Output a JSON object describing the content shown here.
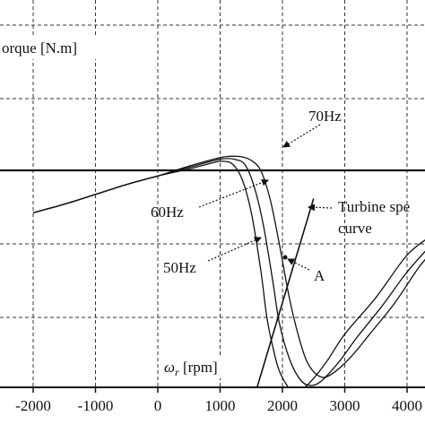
{
  "chart_data": {
    "type": "line",
    "title": "",
    "ylabel": "orque [N.m]",
    "xlabel_symbol": "ω",
    "xlabel_sub": "r",
    "xlabel_unit": " [rpm]",
    "xlim": [
      -2600,
      4500
    ],
    "x_ticks": [
      -2000,
      -1000,
      0,
      1000,
      2000,
      3000,
      4000
    ],
    "x_tick_labels": [
      "-2000",
      "-1000",
      "0",
      "1000",
      "2000",
      "3000",
      "4000"
    ],
    "grid": true,
    "series": [
      {
        "name": "50Hz",
        "points": [
          [
            -2000,
            -1.5
          ],
          [
            -1500,
            -1.2
          ],
          [
            -1000,
            -0.85
          ],
          [
            -500,
            -0.5
          ],
          [
            0,
            -0.2
          ],
          [
            500,
            0.05
          ],
          [
            900,
            0.28
          ],
          [
            1050,
            0.32
          ],
          [
            1200,
            0.22
          ],
          [
            1350,
            -0.3
          ],
          [
            1500,
            -1.5
          ],
          [
            1650,
            -3.5
          ],
          [
            1750,
            -5.2
          ],
          [
            1850,
            -6.3
          ],
          [
            1950,
            -7.1
          ],
          [
            2100,
            -7.7
          ],
          [
            2200,
            -7.85
          ],
          [
            2400,
            -7.6
          ],
          [
            2700,
            -6.8
          ],
          [
            3000,
            -5.8
          ],
          [
            3500,
            -4.5
          ],
          [
            4000,
            -3.0
          ],
          [
            4400,
            -2.3
          ]
        ]
      },
      {
        "name": "60Hz",
        "points": [
          [
            -2000,
            -1.5
          ],
          [
            -1500,
            -1.2
          ],
          [
            -1000,
            -0.85
          ],
          [
            -500,
            -0.5
          ],
          [
            0,
            -0.2
          ],
          [
            500,
            0.1
          ],
          [
            900,
            0.35
          ],
          [
            1100,
            0.42
          ],
          [
            1250,
            0.38
          ],
          [
            1400,
            0.2
          ],
          [
            1550,
            -0.6
          ],
          [
            1700,
            -2.0
          ],
          [
            1850,
            -4.0
          ],
          [
            1950,
            -5.4
          ],
          [
            2100,
            -6.6
          ],
          [
            2250,
            -7.3
          ],
          [
            2400,
            -7.6
          ],
          [
            2600,
            -7.5
          ],
          [
            2900,
            -6.8
          ],
          [
            3200,
            -5.9
          ],
          [
            3600,
            -4.8
          ],
          [
            4000,
            -3.6
          ],
          [
            4400,
            -2.6
          ]
        ]
      },
      {
        "name": "70Hz",
        "points": [
          [
            -2000,
            -1.5
          ],
          [
            -1500,
            -1.2
          ],
          [
            -1000,
            -0.85
          ],
          [
            -500,
            -0.5
          ],
          [
            0,
            -0.2
          ],
          [
            500,
            0.15
          ],
          [
            1000,
            0.45
          ],
          [
            1200,
            0.5
          ],
          [
            1350,
            0.48
          ],
          [
            1500,
            0.35
          ],
          [
            1650,
            0.0
          ],
          [
            1800,
            -1.0
          ],
          [
            1950,
            -2.6
          ],
          [
            2100,
            -4.4
          ],
          [
            2250,
            -5.8
          ],
          [
            2400,
            -6.8
          ],
          [
            2600,
            -7.3
          ],
          [
            2800,
            -7.2
          ],
          [
            3100,
            -6.6
          ],
          [
            3400,
            -5.8
          ],
          [
            3800,
            -4.7
          ],
          [
            4200,
            -3.4
          ],
          [
            4450,
            -2.8
          ]
        ]
      },
      {
        "name": "Turbine speed curve",
        "points": [
          [
            1550,
            -8.0
          ],
          [
            2500,
            -1.0
          ]
        ]
      }
    ],
    "annotations": [
      {
        "text": "70Hz",
        "target": "70Hz"
      },
      {
        "text": "60Hz",
        "target": "60Hz"
      },
      {
        "text": "50Hz",
        "target": "50Hz"
      },
      {
        "text": "Turbine spe",
        "text2": "curve",
        "target": "Turbine speed curve"
      },
      {
        "text": "A",
        "target": "operating point"
      }
    ]
  }
}
